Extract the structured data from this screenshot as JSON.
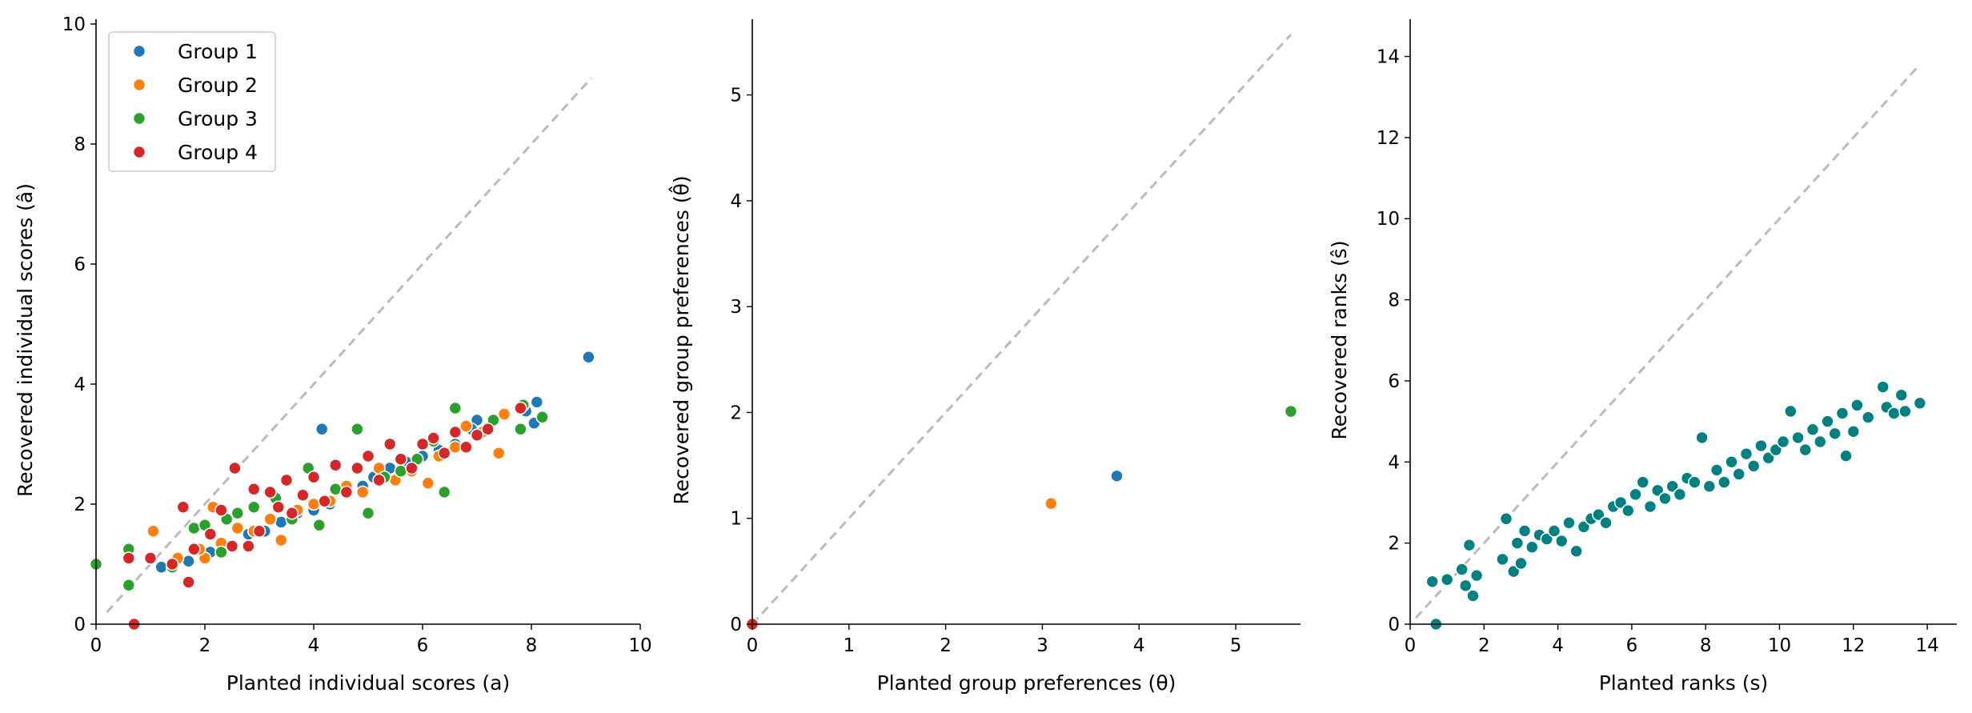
{
  "chart_data": [
    {
      "type": "scatter",
      "xlabel": "Planted individual scores (a)",
      "ylabel": "Recovered individual scores (â)",
      "xlim": [
        0,
        10
      ],
      "ylim": [
        0,
        10
      ],
      "xticks": [
        "0",
        "2",
        "4",
        "6",
        "8",
        "10"
      ],
      "yticks": [
        "0",
        "2",
        "4",
        "6",
        "8",
        "10"
      ],
      "reference_line": {
        "style": "dashed",
        "color": "#bbbbbb",
        "x": [
          0.2,
          9.1
        ],
        "y": [
          0.2,
          9.1
        ]
      },
      "legend": {
        "placement": "top-left"
      },
      "series": [
        {
          "name": "Group 1",
          "color": "#1f77b4",
          "points": [
            [
              9.05,
              4.45
            ],
            [
              8.1,
              3.7
            ],
            [
              8.05,
              3.35
            ],
            [
              7.9,
              3.55
            ],
            [
              7.0,
              3.4
            ],
            [
              6.9,
              3.25
            ],
            [
              6.6,
              3.0
            ],
            [
              6.3,
              2.9
            ],
            [
              6.0,
              2.8
            ],
            [
              5.7,
              2.7
            ],
            [
              5.4,
              2.6
            ],
            [
              5.1,
              2.45
            ],
            [
              4.9,
              2.3
            ],
            [
              4.6,
              2.2
            ],
            [
              4.3,
              2.0
            ],
            [
              4.15,
              3.25
            ],
            [
              4.0,
              1.9
            ],
            [
              3.7,
              1.85
            ],
            [
              3.4,
              1.7
            ],
            [
              3.1,
              1.55
            ],
            [
              2.8,
              1.5
            ],
            [
              2.4,
              1.3
            ],
            [
              2.1,
              1.2
            ],
            [
              1.7,
              1.05
            ],
            [
              1.2,
              0.95
            ]
          ]
        },
        {
          "name": "Group 2",
          "color": "#ff7f0e",
          "points": [
            [
              7.5,
              3.5
            ],
            [
              7.4,
              2.85
            ],
            [
              7.1,
              3.2
            ],
            [
              6.8,
              3.3
            ],
            [
              6.6,
              2.95
            ],
            [
              6.3,
              2.8
            ],
            [
              6.1,
              2.35
            ],
            [
              5.8,
              2.55
            ],
            [
              5.5,
              2.4
            ],
            [
              5.2,
              2.6
            ],
            [
              4.9,
              2.2
            ],
            [
              4.6,
              2.3
            ],
            [
              4.3,
              2.05
            ],
            [
              4.0,
              2.0
            ],
            [
              3.7,
              1.9
            ],
            [
              3.4,
              1.4
            ],
            [
              3.2,
              1.75
            ],
            [
              2.9,
              1.55
            ],
            [
              2.6,
              1.6
            ],
            [
              2.3,
              1.35
            ],
            [
              2.15,
              1.95
            ],
            [
              2.0,
              1.1
            ],
            [
              1.9,
              1.25
            ],
            [
              1.5,
              1.1
            ],
            [
              1.05,
              1.55
            ]
          ]
        },
        {
          "name": "Group 3",
          "color": "#2ca02c",
          "points": [
            [
              0.0,
              1.0
            ],
            [
              0.6,
              1.25
            ],
            [
              0.6,
              0.65
            ],
            [
              1.4,
              0.95
            ],
            [
              1.8,
              1.6
            ],
            [
              2.0,
              1.65
            ],
            [
              2.3,
              1.2
            ],
            [
              2.4,
              1.75
            ],
            [
              2.6,
              1.85
            ],
            [
              2.9,
              1.95
            ],
            [
              3.3,
              2.1
            ],
            [
              3.6,
              1.75
            ],
            [
              3.9,
              2.6
            ],
            [
              4.1,
              1.65
            ],
            [
              4.4,
              2.25
            ],
            [
              4.8,
              3.25
            ],
            [
              5.0,
              1.85
            ],
            [
              5.3,
              2.45
            ],
            [
              5.6,
              2.55
            ],
            [
              5.9,
              2.75
            ],
            [
              6.2,
              3.05
            ],
            [
              6.4,
              2.2
            ],
            [
              6.6,
              3.6
            ],
            [
              7.0,
              3.15
            ],
            [
              7.3,
              3.4
            ],
            [
              7.8,
              3.25
            ],
            [
              7.85,
              3.65
            ],
            [
              8.2,
              3.45
            ]
          ]
        },
        {
          "name": "Group 4",
          "color": "#d62728",
          "points": [
            [
              0.7,
              0.0
            ],
            [
              0.6,
              1.1
            ],
            [
              1.0,
              1.1
            ],
            [
              1.4,
              1.0
            ],
            [
              1.6,
              1.95
            ],
            [
              1.7,
              0.7
            ],
            [
              1.8,
              1.25
            ],
            [
              2.1,
              1.5
            ],
            [
              2.3,
              1.9
            ],
            [
              2.5,
              1.3
            ],
            [
              2.55,
              2.6
            ],
            [
              2.8,
              1.3
            ],
            [
              2.9,
              2.25
            ],
            [
              3.0,
              1.55
            ],
            [
              3.2,
              2.2
            ],
            [
              3.35,
              1.95
            ],
            [
              3.5,
              2.4
            ],
            [
              3.6,
              1.85
            ],
            [
              3.8,
              2.15
            ],
            [
              4.0,
              2.45
            ],
            [
              4.2,
              2.05
            ],
            [
              4.4,
              2.65
            ],
            [
              4.6,
              2.2
            ],
            [
              4.8,
              2.6
            ],
            [
              5.0,
              2.8
            ],
            [
              5.2,
              2.4
            ],
            [
              5.4,
              3.0
            ],
            [
              5.6,
              2.75
            ],
            [
              5.8,
              2.6
            ],
            [
              6.0,
              3.0
            ],
            [
              6.2,
              3.1
            ],
            [
              6.4,
              2.85
            ],
            [
              6.6,
              3.2
            ],
            [
              6.8,
              2.95
            ],
            [
              7.0,
              3.15
            ],
            [
              7.2,
              3.25
            ],
            [
              7.8,
              3.6
            ]
          ]
        }
      ]
    },
    {
      "type": "scatter",
      "xlabel": "Planted group preferences (θ)",
      "ylabel": "Recovered group preferences (θ̂)",
      "xlim": [
        0,
        5.67
      ],
      "ylim": [
        0,
        5.67
      ],
      "xticks": [
        "0",
        "1",
        "2",
        "3",
        "4",
        "5"
      ],
      "yticks": [
        "0",
        "1",
        "2",
        "3",
        "4",
        "5"
      ],
      "reference_line": {
        "style": "dashed",
        "color": "#bbbbbb",
        "x": [
          0.0,
          5.57
        ],
        "y": [
          0.0,
          5.57
        ]
      },
      "series": [
        {
          "color": "#1f77b4",
          "points": [
            [
              3.77,
              1.4
            ]
          ]
        },
        {
          "color": "#ff7f0e",
          "points": [
            [
              3.09,
              1.14
            ]
          ]
        },
        {
          "color": "#2ca02c",
          "points": [
            [
              5.57,
              2.01
            ]
          ]
        },
        {
          "color": "#d62728",
          "points": [
            [
              0.0,
              0.0
            ]
          ]
        }
      ]
    },
    {
      "type": "scatter",
      "xlabel": "Planted ranks (s)",
      "ylabel": "Recovered ranks (ŝ)",
      "xlim": [
        0,
        14.8
      ],
      "ylim": [
        0,
        14.8
      ],
      "xticks": [
        "0",
        "2",
        "4",
        "6",
        "8",
        "10",
        "12",
        "14"
      ],
      "yticks": [
        "0",
        "2",
        "4",
        "6",
        "8",
        "10",
        "12",
        "14"
      ],
      "reference_line": {
        "style": "dashed",
        "color": "#bbbbbb",
        "x": [
          0.15,
          13.75
        ],
        "y": [
          0.15,
          13.75
        ]
      },
      "series": [
        {
          "color": "#008080",
          "points": [
            [
              0.7,
              0.0
            ],
            [
              0.6,
              1.05
            ],
            [
              1.0,
              1.1
            ],
            [
              1.4,
              1.35
            ],
            [
              1.5,
              0.95
            ],
            [
              1.6,
              1.95
            ],
            [
              1.7,
              0.7
            ],
            [
              1.8,
              1.2
            ],
            [
              2.5,
              1.6
            ],
            [
              2.6,
              2.6
            ],
            [
              2.8,
              1.3
            ],
            [
              2.9,
              2.0
            ],
            [
              3.0,
              1.5
            ],
            [
              3.1,
              2.3
            ],
            [
              3.3,
              1.9
            ],
            [
              3.5,
              2.2
            ],
            [
              3.7,
              2.1
            ],
            [
              3.9,
              2.3
            ],
            [
              4.1,
              2.05
            ],
            [
              4.3,
              2.5
            ],
            [
              4.5,
              1.8
            ],
            [
              4.7,
              2.4
            ],
            [
              4.9,
              2.6
            ],
            [
              5.1,
              2.7
            ],
            [
              5.3,
              2.5
            ],
            [
              5.5,
              2.9
            ],
            [
              5.7,
              3.0
            ],
            [
              5.9,
              2.8
            ],
            [
              6.1,
              3.2
            ],
            [
              6.3,
              3.5
            ],
            [
              6.5,
              2.9
            ],
            [
              6.7,
              3.3
            ],
            [
              6.9,
              3.1
            ],
            [
              7.1,
              3.4
            ],
            [
              7.3,
              3.2
            ],
            [
              7.5,
              3.6
            ],
            [
              7.7,
              3.5
            ],
            [
              7.9,
              4.6
            ],
            [
              8.1,
              3.4
            ],
            [
              8.3,
              3.8
            ],
            [
              8.5,
              3.5
            ],
            [
              8.7,
              4.0
            ],
            [
              8.9,
              3.7
            ],
            [
              9.1,
              4.2
            ],
            [
              9.3,
              3.9
            ],
            [
              9.5,
              4.4
            ],
            [
              9.7,
              4.1
            ],
            [
              9.9,
              4.3
            ],
            [
              10.1,
              4.5
            ],
            [
              10.3,
              5.25
            ],
            [
              10.5,
              4.6
            ],
            [
              10.7,
              4.3
            ],
            [
              10.9,
              4.8
            ],
            [
              11.1,
              4.5
            ],
            [
              11.3,
              5.0
            ],
            [
              11.5,
              4.7
            ],
            [
              11.7,
              5.2
            ],
            [
              11.8,
              4.15
            ],
            [
              12.0,
              4.75
            ],
            [
              12.1,
              5.4
            ],
            [
              12.4,
              5.1
            ],
            [
              12.8,
              5.85
            ],
            [
              12.9,
              5.35
            ],
            [
              13.1,
              5.2
            ],
            [
              13.3,
              5.65
            ],
            [
              13.4,
              5.25
            ],
            [
              13.8,
              5.45
            ]
          ]
        }
      ]
    }
  ]
}
